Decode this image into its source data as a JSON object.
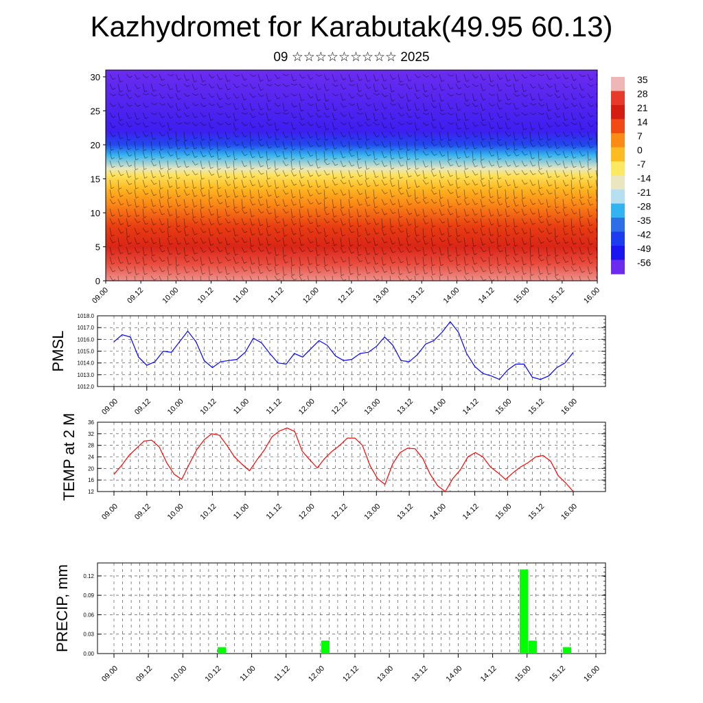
{
  "title": "Kazhydromet for Karabutak(49.95 60.13)",
  "subtitle": "09 ☆☆☆☆☆☆☆☆☆ 2025",
  "time_labels": [
    "09.00",
    "09.12",
    "10.00",
    "10.12",
    "11.00",
    "11.12",
    "12.00",
    "12.12",
    "13.00",
    "13.12",
    "14.00",
    "14.12",
    "15.00",
    "15.12",
    "16.00"
  ],
  "chart_data": [
    {
      "type": "heatmap",
      "name": "cross-section",
      "y_ticks": [
        0,
        5,
        10,
        15,
        20,
        25,
        30
      ],
      "ylim": [
        0,
        31
      ],
      "grid": false,
      "color_levels": [
        35,
        28,
        21,
        14,
        7,
        0,
        -7,
        -14,
        -21,
        -28,
        -35,
        -42,
        -49,
        -56
      ],
      "colorbar_stops": [
        "#efb6b6",
        "#e83a2a",
        "#d51c10",
        "#f14a12",
        "#fb8b16",
        "#fdbd22",
        "#fde862",
        "#e9e6c0",
        "#b6e0f0",
        "#33b3f0",
        "#2e6ee8",
        "#1c3cf0",
        "#1a14f0",
        "#6c2cf0"
      ],
      "legend_position": "right",
      "profile": [
        {
          "level": 0,
          "value": 33
        },
        {
          "level": 2.5,
          "value": 29
        },
        {
          "level": 5,
          "value": 23
        },
        {
          "level": 8,
          "value": 16
        },
        {
          "level": 11,
          "value": 8
        },
        {
          "level": 13.5,
          "value": 1
        },
        {
          "level": 15.5,
          "value": -6
        },
        {
          "level": 16.5,
          "value": -14
        },
        {
          "level": 18.5,
          "value": -28
        },
        {
          "level": 20,
          "value": -40
        },
        {
          "level": 22,
          "value": -52
        },
        {
          "level": 31,
          "value": -58
        }
      ]
    },
    {
      "type": "line",
      "name": "pmsl",
      "ylabel": "PMSL",
      "color": "#0000ff",
      "ylim": [
        1012.0,
        1018.0
      ],
      "y_ticks": [
        "1012.0",
        "1013.0",
        "1014.0",
        "1015.0",
        "1016.0",
        "1017.0",
        "1018.0"
      ],
      "grid": true,
      "values": [
        1015.8,
        1016.4,
        1016.2,
        1014.5,
        1013.8,
        1014.1,
        1015.0,
        1014.9,
        1015.8,
        1016.7,
        1015.8,
        1014.2,
        1013.6,
        1014.1,
        1014.2,
        1014.3,
        1014.9,
        1016.1,
        1015.7,
        1014.8,
        1014.0,
        1013.9,
        1014.8,
        1014.5,
        1015.2,
        1015.9,
        1015.5,
        1014.6,
        1014.2,
        1014.3,
        1014.8,
        1014.9,
        1015.4,
        1016.2,
        1015.5,
        1014.2,
        1014.1,
        1014.7,
        1015.6,
        1015.9,
        1016.6,
        1017.5,
        1016.6,
        1014.8,
        1013.7,
        1013.1,
        1012.9,
        1012.6,
        1013.4,
        1013.9,
        1013.9,
        1012.8,
        1012.6,
        1012.9,
        1013.6,
        1014.0,
        1014.9
      ]
    },
    {
      "type": "line",
      "name": "temp",
      "ylabel": "TEMP at 2 M",
      "color": "#ff0000",
      "ylim": [
        12,
        36
      ],
      "y_ticks": [
        "12",
        "16",
        "20",
        "24",
        "28",
        "32",
        "36"
      ],
      "grid": true,
      "values": [
        18.0,
        21.0,
        24.5,
        27.0,
        29.5,
        29.8,
        27.5,
        22.0,
        18.0,
        16.2,
        21.5,
        26.5,
        30.0,
        32.0,
        31.5,
        28.0,
        24.0,
        21.5,
        19.2,
        23.0,
        26.5,
        31.0,
        33.0,
        34.0,
        32.8,
        26.0,
        23.0,
        20.2,
        23.5,
        26.0,
        28.0,
        30.5,
        30.5,
        28.0,
        21.0,
        16.5,
        14.5,
        21.5,
        25.5,
        27.0,
        26.8,
        23.5,
        18.0,
        14.0,
        12.0,
        16.5,
        19.5,
        24.0,
        25.5,
        24.0,
        20.5,
        18.5,
        16.2,
        18.5,
        20.5,
        22.0,
        24.0,
        24.5,
        22.5,
        17.5,
        15.0,
        12.0
      ]
    },
    {
      "type": "bar",
      "name": "precip",
      "ylabel": "PRECIP, mm",
      "color": "#00ff00",
      "ylim": [
        0,
        0.14
      ],
      "y_ticks": [
        "0.00",
        "0.03",
        "0.06",
        "0.09",
        "0.12"
      ],
      "grid": true,
      "bars": [
        {
          "time_index": 1.0,
          "value": 0.01
        },
        {
          "time_index": 2.0,
          "value": 0.02
        },
        {
          "time_index": 4.0,
          "value": 0.13
        },
        {
          "time_index": 4.12,
          "value": 0.02
        },
        {
          "time_index": 5.12,
          "value": 0.01
        }
      ],
      "bars_note": ""
    }
  ],
  "colors": {
    "pmsl_line": "#0000ff",
    "temp_line": "#ff0000",
    "precip_bar": "#00ff00"
  }
}
